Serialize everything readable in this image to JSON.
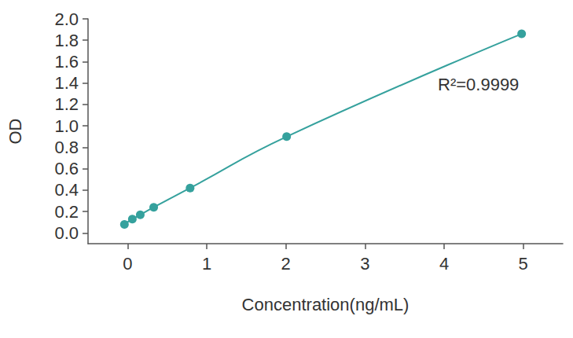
{
  "chart_data": {
    "type": "line",
    "x_label": "Concentration(ng/mL)",
    "y_label": "OD",
    "annotation": "R²=0.9999",
    "x": [
      -0.04,
      0.06,
      0.16,
      0.33,
      0.79,
      2.01,
      4.98
    ],
    "values": [
      0.08,
      0.13,
      0.17,
      0.24,
      0.42,
      0.9,
      1.86
    ],
    "color": "#35a19d",
    "marker": "circle",
    "line_style": "solid",
    "xlim": [
      -0.5,
      5.5
    ],
    "xticks": [
      0,
      1,
      2,
      3,
      4,
      5
    ],
    "ylim": [
      -0.1,
      2.0
    ],
    "yticks": [
      {
        "value": 0,
        "label": "0.0"
      },
      {
        "value": 0.2,
        "label": "0.2"
      },
      {
        "value": 0.4,
        "label": "0.4"
      },
      {
        "value": 0.6,
        "label": "0.6"
      },
      {
        "value": 0.8,
        "label": "0.8"
      },
      {
        "value": 1.0,
        "label": "1.0"
      },
      {
        "value": 1.2,
        "label": "1.2"
      },
      {
        "value": 1.4,
        "label": "1.4"
      },
      {
        "value": 1.6,
        "label": "1.6"
      },
      {
        "value": 1.8,
        "label": "1.8"
      },
      {
        "value": 2.0,
        "label": "2.0"
      }
    ],
    "grid": false
  }
}
